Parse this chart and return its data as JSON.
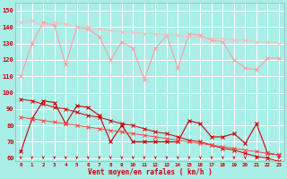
{
  "xlabel": "Vent moyen/en rafales ( km/h )",
  "bg_color": "#aaeee8",
  "grid_color": "#ffffff",
  "x_ticks": [
    0,
    1,
    2,
    3,
    4,
    5,
    6,
    7,
    8,
    9,
    10,
    11,
    12,
    13,
    14,
    15,
    16,
    17,
    18,
    19,
    20,
    21,
    22,
    23
  ],
  "ylim": [
    58,
    155
  ],
  "yticks": [
    60,
    70,
    80,
    90,
    100,
    110,
    120,
    130,
    140,
    150
  ],
  "line1_y": [
    110,
    130,
    143,
    141,
    117,
    140,
    139,
    134,
    120,
    131,
    127,
    108,
    127,
    135,
    115,
    136,
    135,
    132,
    131,
    120,
    115,
    114,
    121,
    121
  ],
  "line1_color": "#ff9999",
  "line2_y": [
    143,
    144,
    141,
    143,
    142,
    140,
    140,
    139,
    138,
    137,
    137,
    136,
    136,
    135,
    135,
    134,
    134,
    133,
    133,
    132,
    132,
    131,
    131,
    130
  ],
  "line2_color": "#ffbbbb",
  "line3_y": [
    64,
    84,
    95,
    94,
    81,
    92,
    91,
    86,
    70,
    80,
    70,
    70,
    70,
    70,
    70,
    83,
    81,
    73,
    73,
    75,
    69,
    81,
    63,
    62
  ],
  "line3_color": "#cc0000",
  "line4_y": [
    96,
    95,
    93,
    91,
    90,
    88,
    86,
    85,
    83,
    81,
    80,
    78,
    76,
    75,
    73,
    71,
    70,
    68,
    66,
    65,
    63,
    61,
    60,
    58
  ],
  "line4_color": "#cc0000",
  "line5_y": [
    85,
    84,
    83,
    82,
    81,
    80,
    79,
    78,
    77,
    76,
    75,
    74,
    73,
    72,
    71,
    70,
    69,
    68,
    67,
    66,
    65,
    64,
    63,
    62
  ],
  "line5_color": "#ff4444",
  "arrow_color": "#cc0000",
  "markersize": 2.0
}
